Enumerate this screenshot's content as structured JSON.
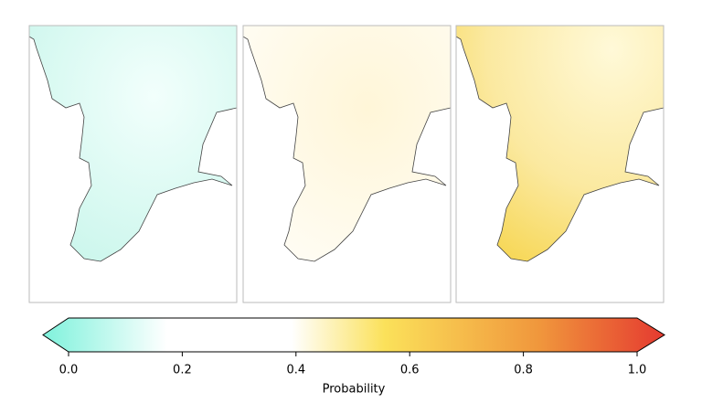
{
  "colorbar": {
    "label": "Probability",
    "lim": [
      0,
      1
    ],
    "ticks": [
      {
        "value": 0,
        "label": "0.0"
      },
      0.2,
      0.4,
      0.6,
      0.8,
      {
        "value": 1,
        "label": "1.0"
      }
    ]
  }
}
